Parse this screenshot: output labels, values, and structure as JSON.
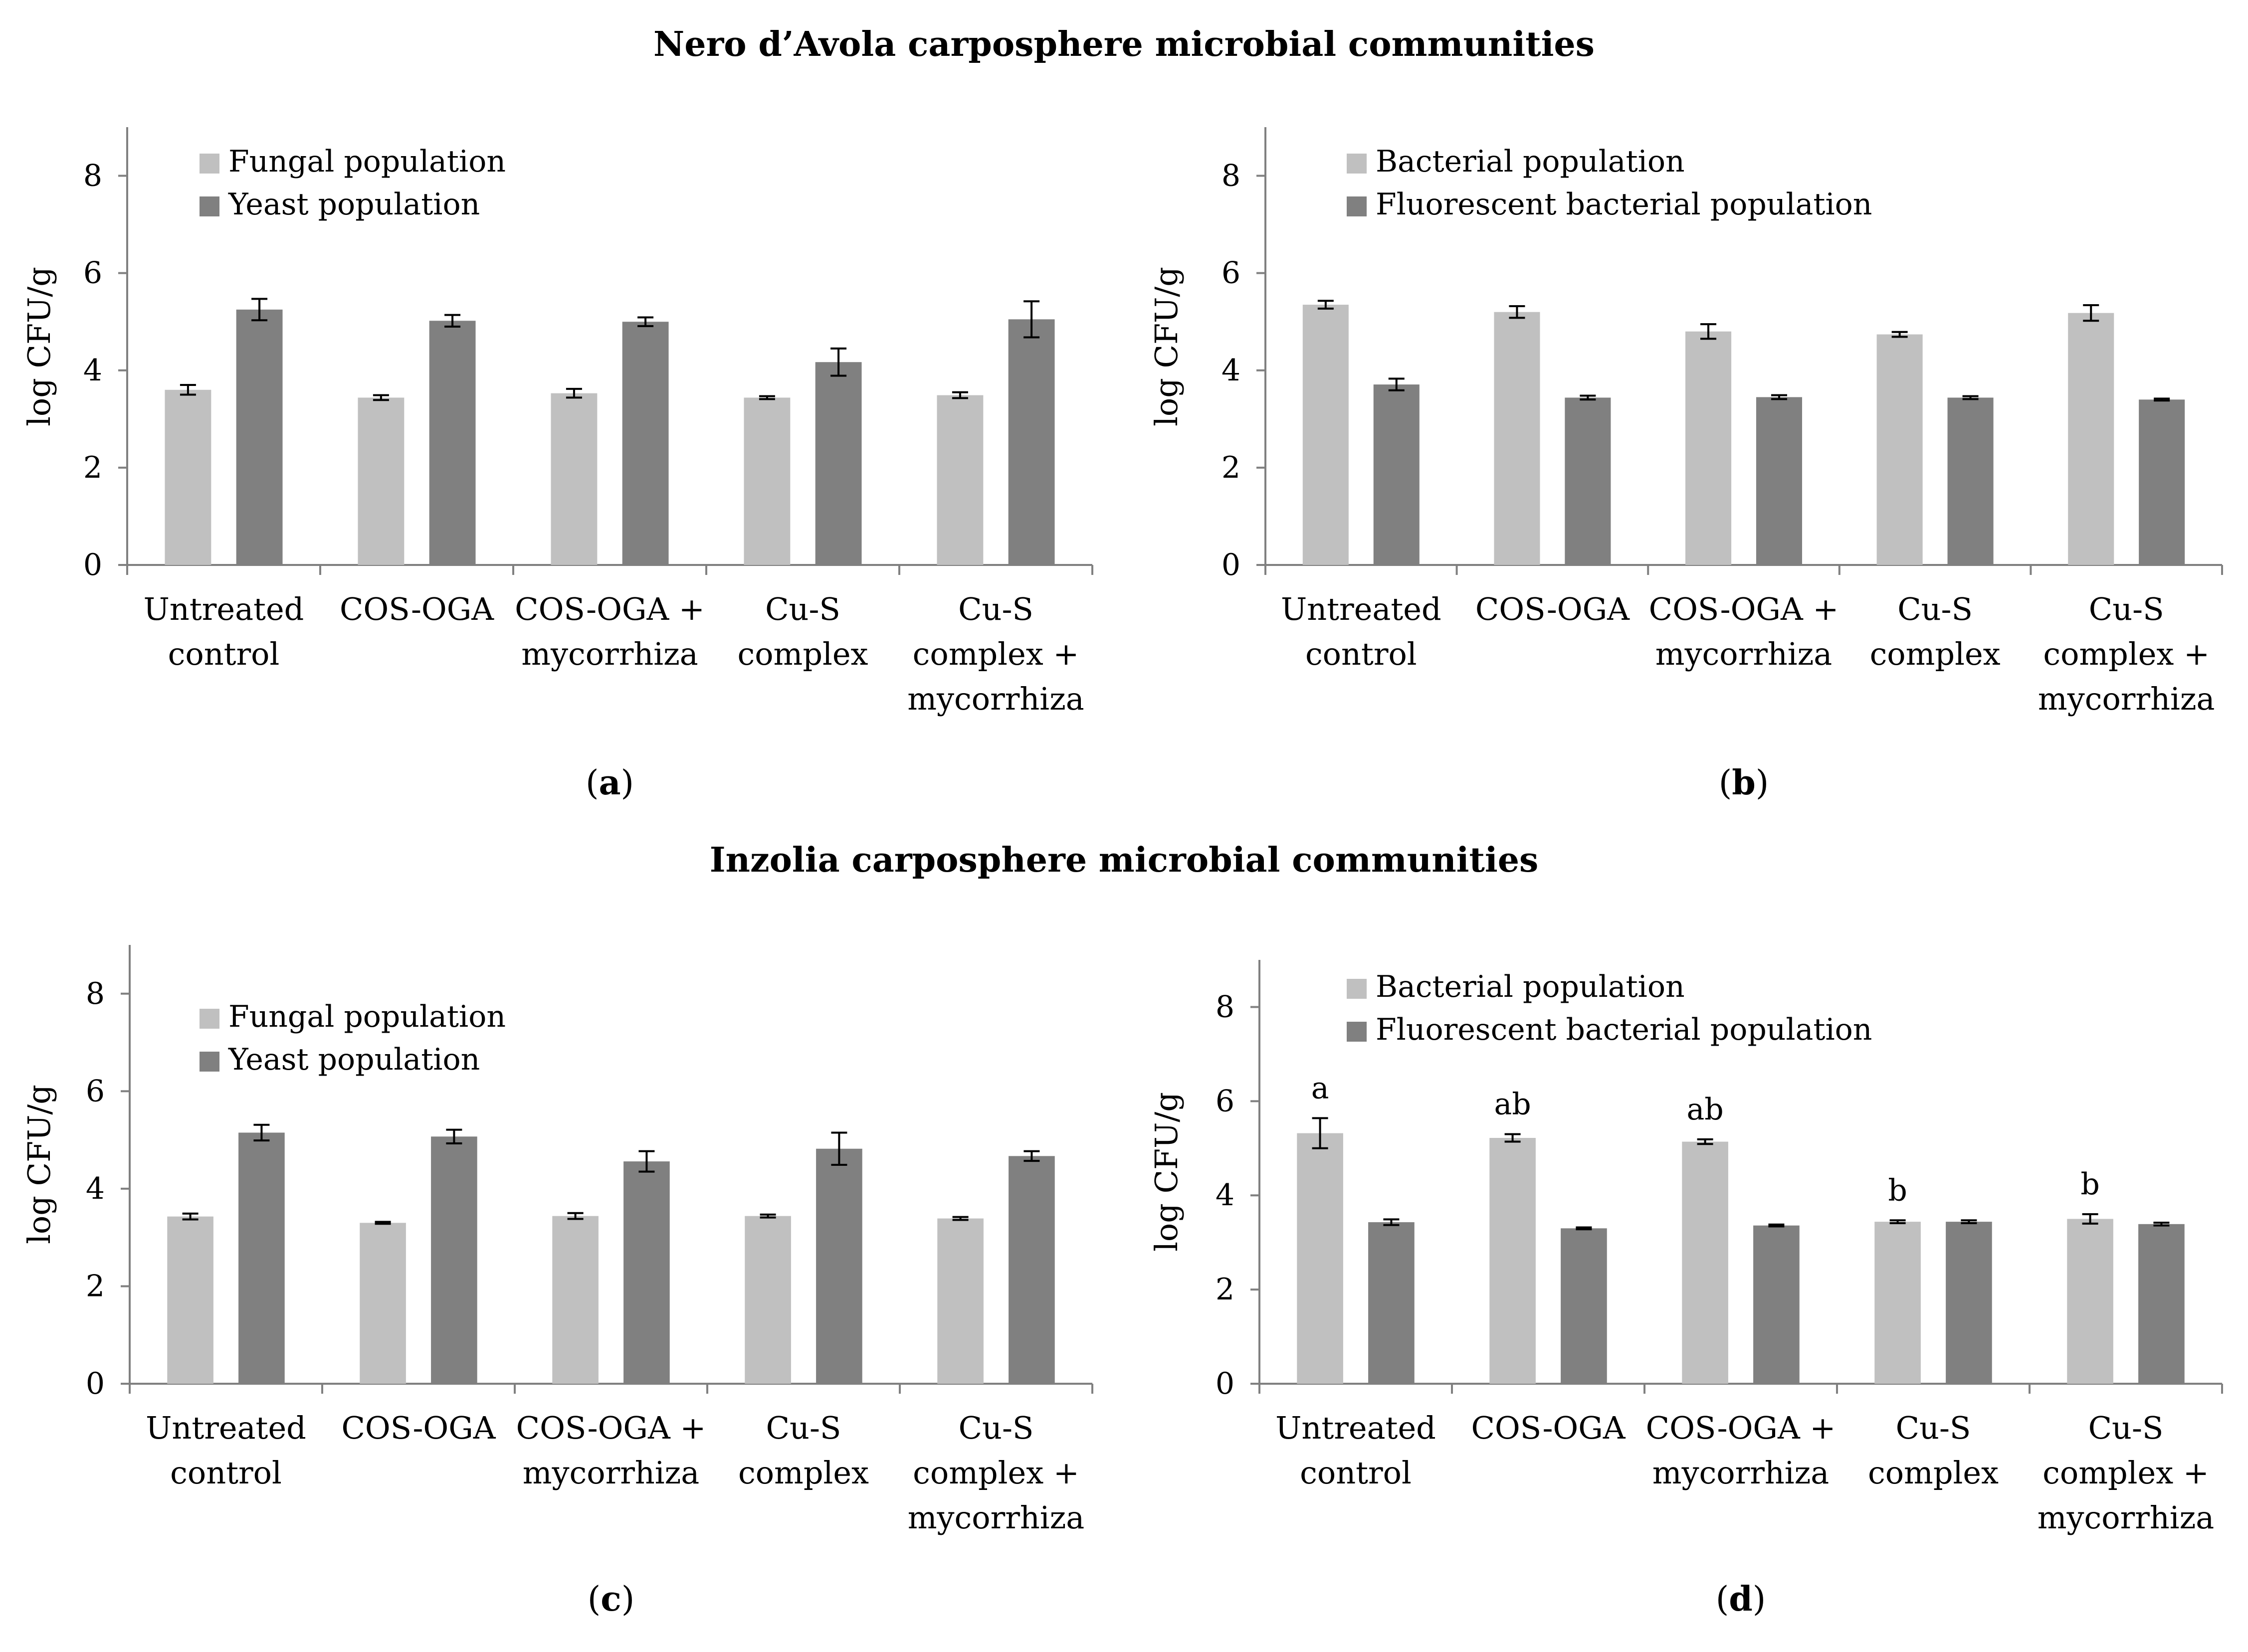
{
  "section_titles": {
    "top": "Nero d’Avola carposphere microbial communities",
    "bottom": "Inzolia carposphere microbial communities"
  },
  "colors": {
    "light_series": "#c0c0c0",
    "dark_series": "#808080",
    "axis": "#808080",
    "error_bar": "#000000"
  },
  "chart_data": [
    {
      "id": "a",
      "type": "bar",
      "panel_label": "(a)",
      "ylabel": "log CFU/g",
      "ylim": [
        0,
        9
      ],
      "yticks": [
        "0",
        "2",
        "4",
        "6",
        "8"
      ],
      "legend_position": "top-left",
      "categories": [
        [
          "Untreated",
          "control"
        ],
        [
          "COS-OGA"
        ],
        [
          "COS-OGA +",
          "mycorrhiza"
        ],
        [
          "Cu-S",
          "complex"
        ],
        [
          "Cu-S",
          "complex +",
          "mycorrhiza"
        ]
      ],
      "series": [
        {
          "name": "Fungal population",
          "values": [
            3.6,
            3.44,
            3.53,
            3.44,
            3.49
          ],
          "errors": [
            0.1,
            0.05,
            0.09,
            0.03,
            0.06
          ]
        },
        {
          "name": "Yeast population",
          "values": [
            5.25,
            5.02,
            5.0,
            4.17,
            5.05
          ],
          "errors": [
            0.22,
            0.12,
            0.09,
            0.28,
            0.37
          ]
        }
      ],
      "annotations": []
    },
    {
      "id": "b",
      "type": "bar",
      "panel_label": "(b)",
      "ylabel": "log CFU/g",
      "ylim": [
        0,
        9
      ],
      "yticks": [
        "0",
        "2",
        "4",
        "6",
        "8"
      ],
      "legend_position": "top-left",
      "categories": [
        [
          "Untreated",
          "control"
        ],
        [
          "COS-OGA"
        ],
        [
          "COS-OGA +",
          "mycorrhiza"
        ],
        [
          "Cu-S",
          "complex"
        ],
        [
          "Cu-S",
          "complex +",
          "mycorrhiza"
        ]
      ],
      "series": [
        {
          "name": "Bacterial population",
          "values": [
            5.35,
            5.2,
            4.8,
            4.74,
            5.18
          ],
          "errors": [
            0.08,
            0.12,
            0.15,
            0.05,
            0.16
          ]
        },
        {
          "name": "Fluorescent bacterial population",
          "values": [
            3.71,
            3.44,
            3.45,
            3.44,
            3.4
          ],
          "errors": [
            0.12,
            0.04,
            0.04,
            0.03,
            0.02
          ]
        }
      ],
      "annotations": []
    },
    {
      "id": "c",
      "type": "bar",
      "panel_label": "(c)",
      "ylabel": "log CFU/g",
      "ylim": [
        0,
        9
      ],
      "yticks": [
        "0",
        "2",
        "4",
        "6",
        "8"
      ],
      "legend_position": "top-left",
      "categories": [
        [
          "Untreated",
          "control"
        ],
        [
          "COS-OGA"
        ],
        [
          "COS-OGA +",
          "mycorrhiza"
        ],
        [
          "Cu-S",
          "complex"
        ],
        [
          "Cu-S",
          "complex +",
          "mycorrhiza"
        ]
      ],
      "series": [
        {
          "name": "Fungal population",
          "values": [
            3.43,
            3.3,
            3.44,
            3.44,
            3.39
          ],
          "errors": [
            0.06,
            0.02,
            0.06,
            0.03,
            0.03
          ]
        },
        {
          "name": "Yeast population",
          "values": [
            5.15,
            5.07,
            4.56,
            4.82,
            4.67
          ],
          "errors": [
            0.16,
            0.14,
            0.21,
            0.33,
            0.1
          ]
        }
      ],
      "annotations": []
    },
    {
      "id": "d",
      "type": "bar",
      "panel_label": "(d)",
      "ylabel": "log CFU/g",
      "ylim": [
        0,
        9
      ],
      "yticks": [
        "0",
        "2",
        "4",
        "6",
        "8"
      ],
      "legend_position": "top-left",
      "categories": [
        [
          "Untreated",
          "control"
        ],
        [
          "COS-OGA"
        ],
        [
          "COS-OGA +",
          "mycorrhiza"
        ],
        [
          "Cu-S",
          "complex"
        ],
        [
          "Cu-S",
          "complex +",
          "mycorrhiza"
        ]
      ],
      "series": [
        {
          "name": "Bacterial population",
          "values": [
            5.32,
            5.22,
            5.14,
            3.44,
            3.5
          ],
          "errors": [
            0.32,
            0.08,
            0.05,
            0.03,
            0.1
          ]
        },
        {
          "name": "Fluorescent bacterial population",
          "values": [
            3.43,
            3.3,
            3.36,
            3.44,
            3.39
          ],
          "errors": [
            0.06,
            0.02,
            0.02,
            0.03,
            0.03
          ]
        }
      ],
      "annotations": [
        {
          "category_index": 0,
          "text": "a"
        },
        {
          "category_index": 1,
          "text": "ab"
        },
        {
          "category_index": 2,
          "text": "ab"
        },
        {
          "category_index": 3,
          "text": "b"
        },
        {
          "category_index": 4,
          "text": "b"
        }
      ]
    }
  ]
}
